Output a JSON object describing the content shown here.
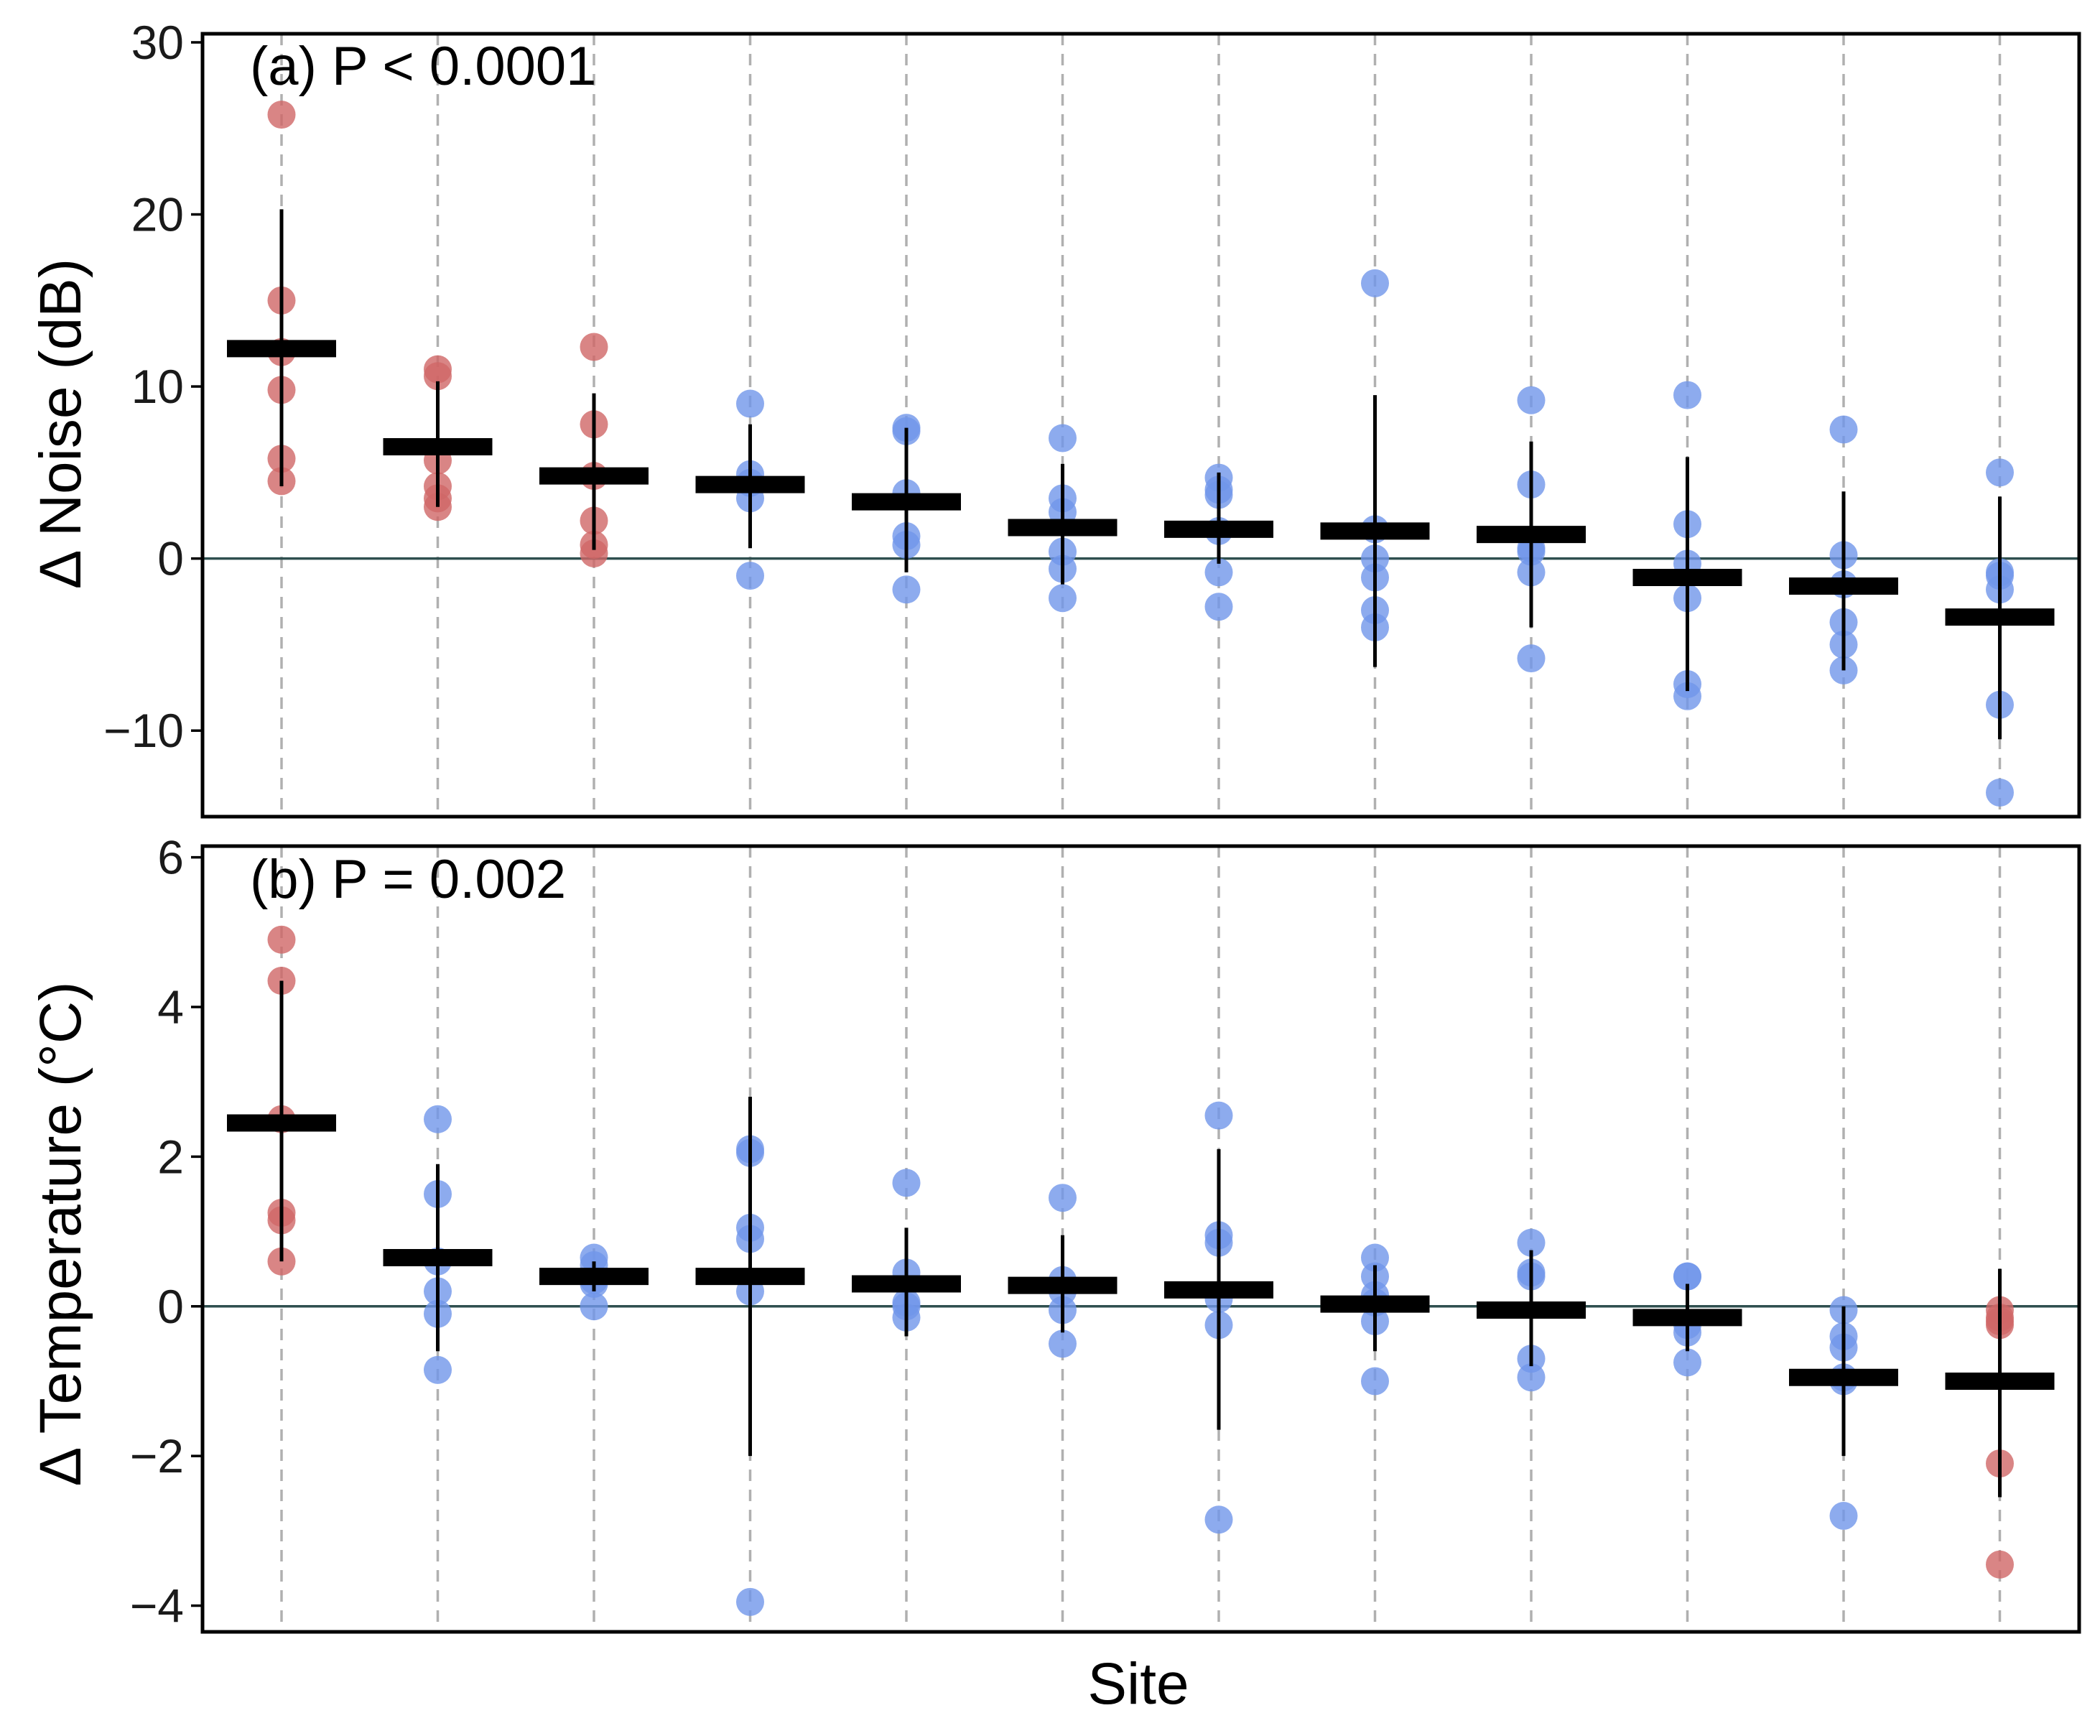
{
  "colors": {
    "red": "#cf6666",
    "blue": "#7096ea"
  },
  "xlabel": "Site",
  "chart_data": [
    {
      "type": "scatter",
      "title": "(a) P < 0.0001",
      "ylabel": "Δ Noise (dB)",
      "ylim": [
        -15,
        30.5
      ],
      "yticks": [
        -10,
        0,
        10,
        20,
        30
      ],
      "ytick_labels": [
        "−10",
        "0",
        "10",
        "20",
        "30"
      ],
      "reference_line": 0,
      "sites": [
        {
          "site": 1,
          "color": "red",
          "mean": 12.2,
          "err_low": 4.2,
          "err_high": 20.3,
          "points": [
            25.8,
            15.0,
            12.0,
            9.8,
            5.8,
            4.5
          ]
        },
        {
          "site": 2,
          "color": "red",
          "mean": 6.5,
          "err_low": 3.0,
          "err_high": 10.3,
          "points": [
            11.0,
            10.6,
            5.7,
            4.2,
            3.5,
            3.0
          ]
        },
        {
          "site": 3,
          "color": "red",
          "mean": 4.8,
          "err_low": 0.5,
          "err_high": 9.6,
          "points": [
            12.3,
            7.8,
            4.8,
            2.2,
            0.8,
            0.3
          ]
        },
        {
          "site": 4,
          "color": "blue",
          "mean": 4.3,
          "err_low": 0.6,
          "err_high": 7.8,
          "points": [
            9.0,
            4.9,
            4.4,
            3.5,
            -1.0
          ]
        },
        {
          "site": 5,
          "color": "blue",
          "mean": 3.3,
          "err_low": -0.8,
          "err_high": 7.6,
          "points": [
            7.6,
            7.4,
            3.8,
            1.3,
            0.8,
            -1.8
          ]
        },
        {
          "site": 6,
          "color": "blue",
          "mean": 1.8,
          "err_low": -1.5,
          "err_high": 5.5,
          "points": [
            7.0,
            3.5,
            2.7,
            0.4,
            -0.6,
            -2.3
          ]
        },
        {
          "site": 7,
          "color": "blue",
          "mean": 1.7,
          "err_low": -0.3,
          "err_high": 5.0,
          "points": [
            4.7,
            4.0,
            3.7,
            1.6,
            -0.8,
            -2.8
          ]
        },
        {
          "site": 8,
          "color": "blue",
          "mean": 1.6,
          "err_low": -6.3,
          "err_high": 9.5,
          "points": [
            16.0,
            1.7,
            0.0,
            -1.1,
            -3.0,
            -4.0
          ]
        },
        {
          "site": 9,
          "color": "blue",
          "mean": 1.4,
          "err_low": -4.0,
          "err_high": 6.8,
          "points": [
            9.2,
            4.3,
            0.6,
            0.4,
            -0.8,
            -5.8
          ]
        },
        {
          "site": 10,
          "color": "blue",
          "mean": -1.1,
          "err_low": -7.7,
          "err_high": 5.9,
          "points": [
            9.5,
            2.0,
            -0.3,
            -2.3,
            -7.3,
            -8.0
          ]
        },
        {
          "site": 11,
          "color": "blue",
          "mean": -1.6,
          "err_low": -6.5,
          "err_high": 3.9,
          "points": [
            7.5,
            0.2,
            -1.5,
            -3.7,
            -5.0,
            -6.5
          ]
        },
        {
          "site": 12,
          "color": "blue",
          "mean": -3.4,
          "err_low": -10.5,
          "err_high": 3.6,
          "points": [
            5.0,
            -0.8,
            -1.0,
            -1.8,
            -8.5,
            -13.6
          ]
        }
      ]
    },
    {
      "type": "scatter",
      "title": "(b) P = 0.002",
      "ylabel": "Δ Temperature (°C)",
      "ylim": [
        -4.35,
        6.15
      ],
      "yticks": [
        -4,
        -2,
        0,
        2,
        4,
        6
      ],
      "ytick_labels": [
        "−4",
        "−2",
        "0",
        "2",
        "4",
        "6"
      ],
      "reference_line": 0,
      "sites": [
        {
          "site": 1,
          "color": "red",
          "mean": 2.45,
          "err_low": 0.6,
          "err_high": 4.35,
          "points": [
            4.9,
            4.35,
            2.5,
            1.25,
            1.15,
            0.6
          ]
        },
        {
          "site": 2,
          "color": "blue",
          "mean": 0.65,
          "err_low": -0.6,
          "err_high": 1.9,
          "points": [
            2.5,
            1.5,
            0.6,
            0.2,
            -0.1,
            -0.85
          ]
        },
        {
          "site": 3,
          "color": "blue",
          "mean": 0.4,
          "err_low": 0.2,
          "err_high": 0.6,
          "points": [
            0.65,
            0.55,
            0.35,
            0.3,
            0.0
          ]
        },
        {
          "site": 4,
          "color": "blue",
          "mean": 0.4,
          "err_low": -2.0,
          "err_high": 2.8,
          "points": [
            2.1,
            2.05,
            1.05,
            0.9,
            0.2,
            -3.95
          ]
        },
        {
          "site": 5,
          "color": "blue",
          "mean": 0.3,
          "err_low": -0.4,
          "err_high": 1.05,
          "points": [
            1.65,
            0.45,
            0.05,
            0.0,
            -0.15
          ]
        },
        {
          "site": 6,
          "color": "blue",
          "mean": 0.28,
          "err_low": -0.35,
          "err_high": 0.95,
          "points": [
            1.45,
            0.35,
            0.2,
            -0.05,
            -0.5
          ]
        },
        {
          "site": 7,
          "color": "blue",
          "mean": 0.22,
          "err_low": -1.65,
          "err_high": 2.1,
          "points": [
            2.55,
            0.95,
            0.85,
            0.1,
            -0.25,
            -2.85
          ]
        },
        {
          "site": 8,
          "color": "blue",
          "mean": 0.03,
          "err_low": -0.6,
          "err_high": 0.55,
          "points": [
            0.65,
            0.4,
            0.15,
            0.05,
            -0.2,
            -1.0
          ]
        },
        {
          "site": 9,
          "color": "blue",
          "mean": -0.05,
          "err_low": -0.8,
          "err_high": 0.75,
          "points": [
            0.85,
            0.45,
            0.4,
            -0.7,
            -0.95
          ]
        },
        {
          "site": 10,
          "color": "blue",
          "mean": -0.15,
          "err_low": -0.6,
          "err_high": 0.3,
          "points": [
            0.4,
            0.4,
            -0.25,
            -0.35,
            -0.75
          ]
        },
        {
          "site": 11,
          "color": "blue",
          "mean": -0.95,
          "err_low": -2.0,
          "err_high": 0.0,
          "points": [
            -0.05,
            -0.4,
            -0.55,
            -0.95,
            -1.0,
            -2.8
          ]
        },
        {
          "site": 12,
          "color": "red",
          "mean": -1.0,
          "err_low": -2.55,
          "err_high": 0.5,
          "points": [
            -0.05,
            -0.15,
            -0.2,
            -0.25,
            -2.1,
            -3.45
          ]
        }
      ]
    }
  ]
}
